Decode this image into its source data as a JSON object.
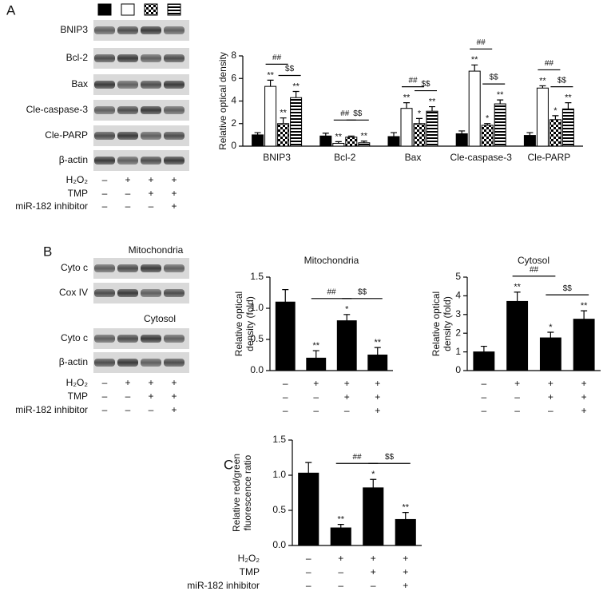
{
  "panel_labels": [
    "A",
    "B",
    "C"
  ],
  "blots": [
    {
      "rows": [
        "BNIP3",
        "Bcl-2",
        "Bax",
        "Cle-caspase-3",
        "Cle-PARP",
        "β-actin"
      ]
    },
    {
      "title": "Mitochondria",
      "rows": [
        "Cyto c",
        "Cox IV"
      ]
    },
    {
      "title": "Cytosol",
      "rows": [
        "Cyto c",
        "β-actin"
      ]
    }
  ],
  "conditions": [
    {
      "label": "H₂O₂",
      "signs": [
        "–",
        "+",
        "+",
        "+"
      ]
    },
    {
      "label": "TMP",
      "signs": [
        "–",
        "–",
        "+",
        "+"
      ]
    },
    {
      "label": "miR-182 inhibitor",
      "signs": [
        "–",
        "–",
        "–",
        "+"
      ]
    }
  ],
  "chart_data": [
    {
      "type": "grouped-bar",
      "ylabel": [
        "Relative optical density"
      ],
      "categories": [
        "BNIP3",
        "Bcl-2",
        "Bax",
        "Cle-caspase-3",
        "Cle-PARP"
      ],
      "series": [
        {
          "color": "#000000",
          "pattern": null,
          "values": [
            1.0,
            0.9,
            0.85,
            1.1,
            0.95
          ],
          "errors": [
            0.2,
            0.25,
            0.35,
            0.25,
            0.25
          ],
          "stars": [
            null,
            null,
            null,
            null,
            null
          ]
        },
        {
          "color": "#ffffff",
          "pattern": null,
          "values": [
            5.3,
            0.25,
            3.35,
            6.65,
            5.15
          ],
          "errors": [
            0.55,
            0.15,
            0.5,
            0.55,
            0.2
          ],
          "stars": [
            "**",
            "**",
            "**",
            "**",
            "**"
          ]
        },
        {
          "color": "#ffffff",
          "pattern": "checker",
          "values": [
            2.0,
            0.8,
            2.0,
            1.85,
            2.35
          ],
          "errors": [
            0.5,
            0.1,
            0.45,
            0.15,
            0.35
          ],
          "stars": [
            "**",
            null,
            "*",
            "*",
            "*"
          ]
        },
        {
          "color": "#ffffff",
          "pattern": "horizontal-stripes",
          "values": [
            4.3,
            0.3,
            3.1,
            3.75,
            3.3
          ],
          "errors": [
            0.55,
            0.15,
            0.4,
            0.35,
            0.55
          ],
          "stars": [
            "**",
            "**",
            "**",
            "**",
            "**"
          ]
        }
      ],
      "comparisons": [
        {
          "label": "##",
          "category": 0,
          "between": [
            1,
            2
          ]
        },
        {
          "label": "$$",
          "category": 0,
          "between": [
            2,
            3
          ]
        },
        {
          "label": "##",
          "category": 1,
          "between": [
            1,
            2
          ]
        },
        {
          "label": "$$",
          "category": 1,
          "between": [
            2,
            3
          ]
        },
        {
          "label": "##",
          "category": 2,
          "between": [
            1,
            2
          ]
        },
        {
          "label": "$$",
          "category": 2,
          "between": [
            2,
            3
          ]
        },
        {
          "label": "##",
          "category": 3,
          "between": [
            1,
            2
          ]
        },
        {
          "label": "$$",
          "category": 3,
          "between": [
            2,
            3
          ]
        },
        {
          "label": "##",
          "category": 4,
          "between": [
            1,
            2
          ]
        },
        {
          "label": "$$",
          "category": 4,
          "between": [
            2,
            3
          ]
        }
      ],
      "ylim": [
        0,
        8
      ],
      "yticks": [
        0,
        2,
        4,
        6,
        8
      ]
    },
    {
      "type": "bar",
      "title": "Mitochondria",
      "ylabel": [
        "Relative optical",
        "density (fold)"
      ],
      "color": "#000000",
      "values": [
        1.1,
        0.2,
        0.8,
        0.25
      ],
      "errors": [
        0.2,
        0.12,
        0.1,
        0.12
      ],
      "stars": [
        null,
        "**",
        "*",
        "**"
      ],
      "comparisons": [
        {
          "label": "##",
          "between": [
            1,
            2
          ]
        },
        {
          "label": "$$",
          "between": [
            2,
            3
          ]
        }
      ],
      "ylim": [
        0,
        1.5
      ],
      "yticks": [
        {
          "value": 0,
          "label": "0.0"
        },
        0.5,
        {
          "value": 1,
          "label": "1.0"
        },
        1.5
      ]
    },
    {
      "type": "bar",
      "title": "Cytosol",
      "ylabel": [
        "Relative optical",
        "density (fold)"
      ],
      "color": "#000000",
      "values": [
        1.0,
        3.7,
        1.75,
        2.75
      ],
      "errors": [
        0.3,
        0.5,
        0.3,
        0.45
      ],
      "stars": [
        null,
        "**",
        "*",
        "**"
      ],
      "comparisons": [
        {
          "label": "##",
          "between": [
            1,
            2
          ]
        },
        {
          "label": "$$",
          "between": [
            2,
            3
          ]
        }
      ],
      "ylim": [
        0,
        5
      ],
      "yticks": [
        0,
        1,
        2,
        3,
        4,
        5
      ]
    },
    {
      "type": "bar",
      "ylabel": [
        "Relative red/green",
        "fluorescence ratio"
      ],
      "color": "#000000",
      "values": [
        1.03,
        0.25,
        0.82,
        0.37
      ],
      "errors": [
        0.15,
        0.05,
        0.12,
        0.1
      ],
      "stars": [
        null,
        "**",
        "*",
        "**"
      ],
      "comparisons": [
        {
          "label": "##",
          "between": [
            1,
            2
          ]
        },
        {
          "label": "$$",
          "between": [
            2,
            3
          ]
        }
      ],
      "ylim": [
        0,
        1.5
      ],
      "yticks": [
        {
          "value": 0,
          "label": "0.0"
        },
        0.5,
        {
          "value": 1,
          "label": "1.0"
        },
        1.5
      ]
    }
  ]
}
